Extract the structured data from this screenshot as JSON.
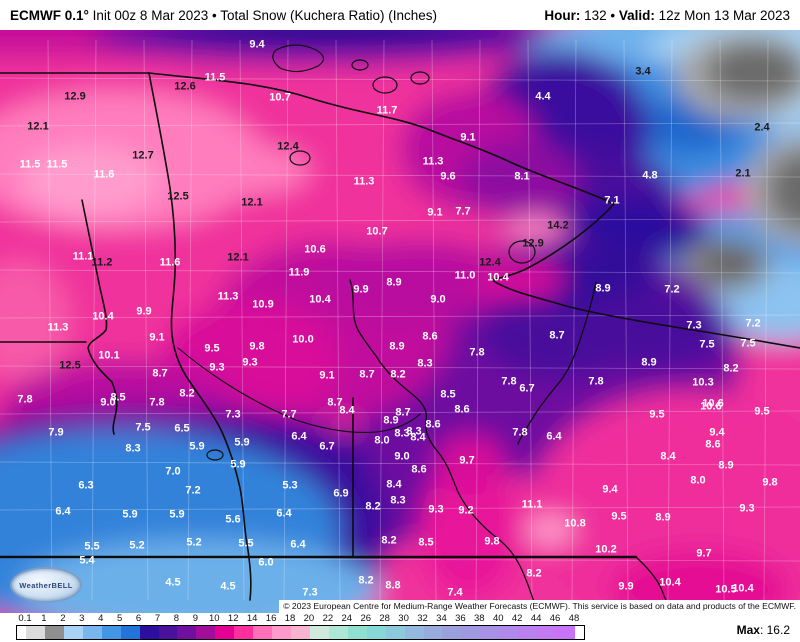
{
  "header": {
    "model": "ECMWF 0.1°",
    "title": " Init 00z 8 Mar 2023 • Total Snow (Kuchera Ratio) (Inches)",
    "hour_label": "Hour:",
    "hour_value": " 132 ",
    "separator": "• ",
    "valid_label": "Valid:",
    "valid_value": " 12z Mon 13 Mar 2023"
  },
  "attribution": "© 2023 European Centre for Medium-Range Weather Forecasts (ECMWF). This service is based on data and products of the ECMWF.",
  "logo_text": "WeatherBELL",
  "footer": {
    "max_label": "Max",
    "max_value": ": 16.2",
    "ticks": [
      "0.1",
      "1",
      "2",
      "3",
      "4",
      "5",
      "6",
      "7",
      "8",
      "9",
      "10",
      "12",
      "14",
      "16",
      "18",
      "20",
      "22",
      "24",
      "26",
      "28",
      "30",
      "32",
      "34",
      "36",
      "38",
      "40",
      "42",
      "44",
      "46",
      "48"
    ],
    "segment_colors": [
      "#ffffff",
      "#dcdcdc",
      "#8f8f8f",
      "#a9d3f5",
      "#77b7ee",
      "#4396e6",
      "#2374d8",
      "#2c0f9e",
      "#4a119c",
      "#70109f",
      "#a30d9c",
      "#e30092",
      "#ff2e9f",
      "#ff70b8",
      "#ff9aca",
      "#f7b3cf",
      "#cfe9dc",
      "#aee7d6",
      "#8fe0d0",
      "#86d8d6",
      "#8cc9dc",
      "#93bade",
      "#97abdd",
      "#9aa0de",
      "#a198e2",
      "#a890e6",
      "#b189ea",
      "#b981ee",
      "#c17af2",
      "#c973f6"
    ]
  },
  "map": {
    "value_labels": [
      [
        "9.4",
        257,
        45,
        "w"
      ],
      [
        "3.4",
        643,
        72,
        "d"
      ],
      [
        "11.5",
        215,
        78,
        "w"
      ],
      [
        "12.6",
        185,
        87,
        "d"
      ],
      [
        "12.9",
        75,
        97,
        "d"
      ],
      [
        "10.7",
        280,
        98,
        "w"
      ],
      [
        "4.4",
        543,
        97,
        "w"
      ],
      [
        "11.7",
        387,
        111,
        "w"
      ],
      [
        "12.1",
        38,
        127,
        "d"
      ],
      [
        "2.4",
        762,
        128,
        "d"
      ],
      [
        "9.1",
        468,
        138,
        "w"
      ],
      [
        "12.4",
        288,
        147,
        "d"
      ],
      [
        "12.7",
        143,
        156,
        "d"
      ],
      [
        "11.3",
        433,
        162,
        "w"
      ],
      [
        "11.5",
        30,
        165,
        "w"
      ],
      [
        "11.5",
        57,
        165,
        "w"
      ],
      [
        "11.6",
        104,
        175,
        "w"
      ],
      [
        "9.6",
        448,
        177,
        "w"
      ],
      [
        "8.1",
        522,
        177,
        "w"
      ],
      [
        "4.8",
        650,
        176,
        "w"
      ],
      [
        "2.1",
        743,
        174,
        "d"
      ],
      [
        "11.3",
        364,
        182,
        "w"
      ],
      [
        "12.5",
        178,
        197,
        "d"
      ],
      [
        "7.1",
        612,
        201,
        "w"
      ],
      [
        "12.1",
        252,
        203,
        "d"
      ],
      [
        "9.1",
        435,
        213,
        "w"
      ],
      [
        "7.7",
        463,
        212,
        "w"
      ],
      [
        "14.2",
        558,
        226,
        "d"
      ],
      [
        "10.7",
        377,
        232,
        "w"
      ],
      [
        "12.9",
        533,
        244,
        "d"
      ],
      [
        "10.6",
        315,
        250,
        "w"
      ],
      [
        "11.1",
        83,
        257,
        "w"
      ],
      [
        "12.1",
        238,
        258,
        "d"
      ],
      [
        "11.2",
        102,
        263,
        "d"
      ],
      [
        "11.6",
        170,
        263,
        "w"
      ],
      [
        "12.4",
        490,
        263,
        "d"
      ],
      [
        "11.9",
        299,
        273,
        "w"
      ],
      [
        "11.0",
        465,
        276,
        "w"
      ],
      [
        "10.4",
        498,
        278,
        "w"
      ],
      [
        "8.9",
        394,
        283,
        "w"
      ],
      [
        "8.9",
        603,
        289,
        "w"
      ],
      [
        "7.2",
        672,
        290,
        "w"
      ],
      [
        "9.9",
        361,
        290,
        "w"
      ],
      [
        "11.3",
        228,
        297,
        "w"
      ],
      [
        "10.4",
        320,
        300,
        "w"
      ],
      [
        "9.0",
        438,
        300,
        "w"
      ],
      [
        "10.9",
        263,
        305,
        "w"
      ],
      [
        "9.9",
        144,
        312,
        "w"
      ],
      [
        "10.4",
        103,
        317,
        "w"
      ],
      [
        "7.3",
        694,
        326,
        "w"
      ],
      [
        "7.2",
        753,
        324,
        "w"
      ],
      [
        "11.3",
        58,
        328,
        "w"
      ],
      [
        "8.6",
        430,
        337,
        "w"
      ],
      [
        "9.1",
        157,
        338,
        "w"
      ],
      [
        "8.7",
        557,
        336,
        "w"
      ],
      [
        "10.0",
        303,
        340,
        "w"
      ],
      [
        "9.5",
        212,
        349,
        "w"
      ],
      [
        "9.8",
        257,
        347,
        "w"
      ],
      [
        "8.9",
        397,
        347,
        "w"
      ],
      [
        "7.8",
        477,
        353,
        "w"
      ],
      [
        "7.5",
        707,
        345,
        "w"
      ],
      [
        "7.5",
        748,
        344,
        "w"
      ],
      [
        "10.1",
        109,
        356,
        "w"
      ],
      [
        "9.3",
        250,
        363,
        "w"
      ],
      [
        "8.3",
        425,
        364,
        "w"
      ],
      [
        "12.5",
        70,
        366,
        "d"
      ],
      [
        "9.3",
        217,
        368,
        "w"
      ],
      [
        "8.7",
        160,
        374,
        "w"
      ],
      [
        "9.1",
        327,
        376,
        "w"
      ],
      [
        "8.7",
        367,
        375,
        "w"
      ],
      [
        "8.2",
        398,
        375,
        "w"
      ],
      [
        "8.9",
        649,
        363,
        "w"
      ],
      [
        "8.2",
        731,
        369,
        "w"
      ],
      [
        "7.8",
        509,
        382,
        "w"
      ],
      [
        "6.7",
        527,
        389,
        "w"
      ],
      [
        "7.8",
        596,
        382,
        "w"
      ],
      [
        "10.3",
        703,
        383,
        "w"
      ],
      [
        "8.2",
        187,
        394,
        "w"
      ],
      [
        "8.5",
        118,
        398,
        "w"
      ],
      [
        "8.5",
        448,
        395,
        "w"
      ],
      [
        "7.8",
        25,
        400,
        "w"
      ],
      [
        "9.0",
        108,
        403,
        "w"
      ],
      [
        "7.8",
        157,
        403,
        "w"
      ],
      [
        "8.7",
        335,
        403,
        "w"
      ],
      [
        "10.6",
        713,
        404,
        "w"
      ],
      [
        "8.4",
        347,
        411,
        "w"
      ],
      [
        "8.7",
        403,
        413,
        "w"
      ],
      [
        "8.6",
        462,
        410,
        "w"
      ],
      [
        "10.6",
        711,
        407,
        "w"
      ],
      [
        "9.5",
        657,
        415,
        "w"
      ],
      [
        "9.5",
        762,
        412,
        "w"
      ],
      [
        "7.3",
        233,
        415,
        "w"
      ],
      [
        "7.7",
        289,
        415,
        "w"
      ],
      [
        "8.9",
        391,
        421,
        "w"
      ],
      [
        "8.6",
        433,
        425,
        "w"
      ],
      [
        "7.5",
        143,
        428,
        "w"
      ],
      [
        "6.5",
        182,
        429,
        "w"
      ],
      [
        "8.3",
        414,
        432,
        "w"
      ],
      [
        "8.3",
        402,
        434,
        "w"
      ],
      [
        "7.9",
        56,
        433,
        "w"
      ],
      [
        "7.8",
        520,
        433,
        "w"
      ],
      [
        "9.4",
        717,
        433,
        "w"
      ],
      [
        "8.4",
        418,
        438,
        "w"
      ],
      [
        "6.4",
        299,
        437,
        "w"
      ],
      [
        "6.4",
        554,
        437,
        "w"
      ],
      [
        "8.0",
        382,
        441,
        "w"
      ],
      [
        "5.9",
        242,
        443,
        "w"
      ],
      [
        "8.6",
        713,
        445,
        "w"
      ],
      [
        "6.7",
        327,
        447,
        "w"
      ],
      [
        "5.9",
        197,
        447,
        "w"
      ],
      [
        "8.3",
        133,
        449,
        "w"
      ],
      [
        "8.4",
        668,
        457,
        "w"
      ],
      [
        "9.0",
        402,
        457,
        "w"
      ],
      [
        "9.7",
        467,
        461,
        "w"
      ],
      [
        "5.9",
        238,
        465,
        "w"
      ],
      [
        "8.9",
        726,
        466,
        "w"
      ],
      [
        "8.6",
        419,
        470,
        "w"
      ],
      [
        "7.0",
        173,
        472,
        "w"
      ],
      [
        "8.0",
        698,
        481,
        "w"
      ],
      [
        "9.8",
        770,
        483,
        "w"
      ],
      [
        "8.4",
        394,
        485,
        "w"
      ],
      [
        "6.3",
        86,
        486,
        "w"
      ],
      [
        "5.3",
        290,
        486,
        "w"
      ],
      [
        "9.4",
        610,
        490,
        "w"
      ],
      [
        "7.2",
        193,
        491,
        "w"
      ],
      [
        "6.9",
        341,
        494,
        "w"
      ],
      [
        "8.3",
        398,
        501,
        "w"
      ],
      [
        "11.1",
        532,
        505,
        "w"
      ],
      [
        "8.2",
        373,
        507,
        "w"
      ],
      [
        "9.3",
        436,
        510,
        "w"
      ],
      [
        "9.2",
        466,
        511,
        "w"
      ],
      [
        "9.3",
        747,
        509,
        "w"
      ],
      [
        "6.4",
        63,
        512,
        "w"
      ],
      [
        "6.4",
        284,
        514,
        "w"
      ],
      [
        "5.9",
        130,
        515,
        "w"
      ],
      [
        "5.9",
        177,
        515,
        "w"
      ],
      [
        "9.5",
        619,
        517,
        "w"
      ],
      [
        "8.9",
        663,
        518,
        "w"
      ],
      [
        "5.6",
        233,
        520,
        "w"
      ],
      [
        "10.8",
        575,
        524,
        "w"
      ],
      [
        "8.2",
        389,
        541,
        "w"
      ],
      [
        "8.5",
        426,
        543,
        "w"
      ],
      [
        "9.8",
        492,
        542,
        "w"
      ],
      [
        "5.2",
        194,
        543,
        "w"
      ],
      [
        "5.5",
        246,
        544,
        "w"
      ],
      [
        "6.4",
        298,
        545,
        "w"
      ],
      [
        "5.5",
        92,
        547,
        "w"
      ],
      [
        "5.2",
        137,
        546,
        "w"
      ],
      [
        "10.2",
        606,
        550,
        "w"
      ],
      [
        "9.7",
        704,
        554,
        "w"
      ],
      [
        "5.4",
        87,
        561,
        "w"
      ],
      [
        "6.0",
        266,
        563,
        "w"
      ],
      [
        "8.2",
        534,
        574,
        "w"
      ],
      [
        "8.2",
        366,
        581,
        "w"
      ],
      [
        "4.5",
        173,
        583,
        "w"
      ],
      [
        "10.4",
        670,
        583,
        "w"
      ],
      [
        "8.8",
        393,
        586,
        "w"
      ],
      [
        "4.5",
        228,
        587,
        "w"
      ],
      [
        "9.9",
        626,
        587,
        "w"
      ],
      [
        "7.3",
        310,
        593,
        "w"
      ],
      [
        "7.4",
        455,
        593,
        "w"
      ],
      [
        "10.5",
        726,
        590,
        "w"
      ],
      [
        "10.4",
        743,
        589,
        "w"
      ]
    ]
  }
}
